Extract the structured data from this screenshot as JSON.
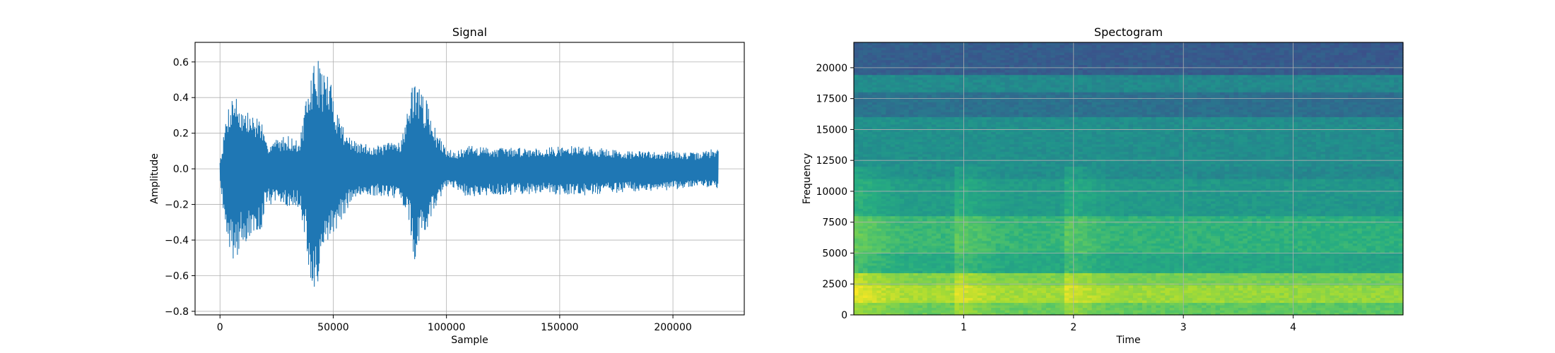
{
  "chart_data": [
    {
      "type": "line",
      "title": "Signal",
      "xlabel": "Sample",
      "ylabel": "Amplitude",
      "xlim": [
        -11000,
        231500
      ],
      "ylim": [
        -0.82,
        0.71
      ],
      "grid": true,
      "line_color": "#1f77b4",
      "x_ticks": [
        0,
        50000,
        100000,
        150000,
        200000
      ],
      "x_tick_labels": [
        "0",
        "50000",
        "100000",
        "150000",
        "200000"
      ],
      "y_ticks": [
        0.6,
        0.4,
        0.2,
        0.0,
        -0.2,
        -0.4,
        -0.6,
        -0.8
      ],
      "y_tick_labels": [
        "0.6",
        "0.4",
        "0.2",
        "0.0",
        "−0.2",
        "−0.4",
        "−0.6",
        "−0.8"
      ],
      "series": [
        {
          "envelope": {
            "sample": [
              0,
              1000,
              3000,
              6000,
              10000,
              15000,
              18000,
              20000,
              25000,
              30000,
              35000,
              38000,
              40000,
              42000,
              45000,
              48000,
              52000,
              55000,
              58000,
              60000,
              70000,
              80000,
              84000,
              86000,
              88000,
              90000,
              92000,
              95000,
              98000,
              100000,
              105000,
              110000,
              120000,
              140000,
              160000,
              180000,
              200000,
              210000,
              220000
            ],
            "upper": [
              0.05,
              0.12,
              0.33,
              0.45,
              0.34,
              0.3,
              0.3,
              0.15,
              0.17,
              0.19,
              0.15,
              0.38,
              0.52,
              0.64,
              0.58,
              0.53,
              0.33,
              0.23,
              0.17,
              0.15,
              0.13,
              0.17,
              0.4,
              0.56,
              0.45,
              0.42,
              0.36,
              0.23,
              0.15,
              0.12,
              0.1,
              0.13,
              0.12,
              0.12,
              0.13,
              0.1,
              0.1,
              0.09,
              0.12
            ],
            "lower": [
              -0.05,
              -0.18,
              -0.38,
              -0.53,
              -0.42,
              -0.4,
              -0.36,
              -0.2,
              -0.2,
              -0.21,
              -0.22,
              -0.42,
              -0.7,
              -0.75,
              -0.58,
              -0.4,
              -0.33,
              -0.26,
              -0.18,
              -0.18,
              -0.15,
              -0.17,
              -0.33,
              -0.58,
              -0.42,
              -0.38,
              -0.33,
              -0.22,
              -0.15,
              -0.1,
              -0.12,
              -0.17,
              -0.15,
              -0.14,
              -0.15,
              -0.13,
              -0.12,
              -0.1,
              -0.12
            ]
          }
        }
      ]
    },
    {
      "type": "heatmap",
      "title": "Spectogram",
      "xlabel": "Time",
      "ylabel": "Frequency",
      "xlim": [
        0,
        5.0
      ],
      "ylim": [
        0,
        22050
      ],
      "grid": true,
      "colormap": "viridis",
      "x_ticks": [
        1,
        2,
        3,
        4
      ],
      "x_tick_labels": [
        "1",
        "2",
        "3",
        "4"
      ],
      "y_ticks": [
        0,
        2500,
        5000,
        7500,
        10000,
        12500,
        15000,
        17500,
        20000
      ],
      "y_tick_labels": [
        "0",
        "2500",
        "5000",
        "7500",
        "10000",
        "12500",
        "15000",
        "17500",
        "20000"
      ],
      "frequency_bands": [
        {
          "from": 0,
          "to": 1000,
          "level": 0.78
        },
        {
          "from": 1000,
          "to": 2500,
          "level": 0.88
        },
        {
          "from": 2500,
          "to": 3500,
          "level": 0.82
        },
        {
          "from": 3500,
          "to": 5000,
          "level": 0.62
        },
        {
          "from": 5000,
          "to": 8000,
          "level": 0.68
        },
        {
          "from": 8000,
          "to": 11000,
          "level": 0.56
        },
        {
          "from": 11000,
          "to": 16000,
          "level": 0.5
        },
        {
          "from": 16000,
          "to": 18000,
          "level": 0.38
        },
        {
          "from": 18000,
          "to": 19500,
          "level": 0.48
        },
        {
          "from": 19500,
          "to": 22050,
          "level": 0.3
        }
      ],
      "onsets": [
        0.0,
        0.9,
        1.9
      ]
    }
  ]
}
